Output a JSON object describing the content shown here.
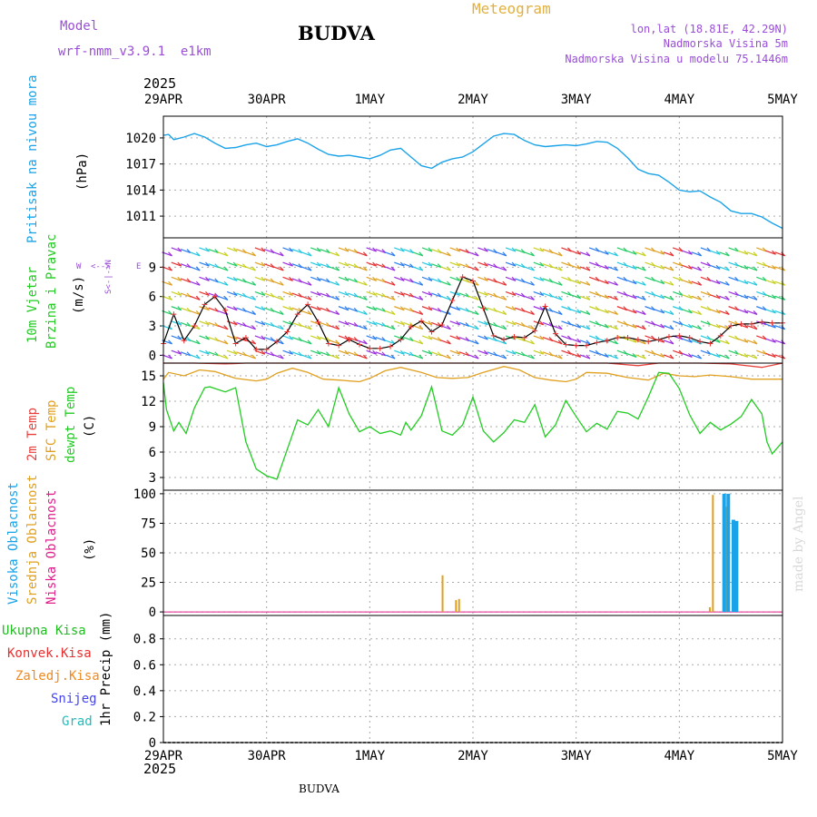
{
  "header": {
    "model_label": "Model",
    "model_name": "wrf-nmm_v3.9.1  e1km",
    "station": "BUDVA",
    "title": "Meteogram",
    "lonlat": "lon,lat (18.81E, 42.29N)",
    "elevation": "Nadmorska Visina 5m",
    "model_elevation": "Nadmorska Visina u modelu 75.1446m",
    "year_top": "2025",
    "year_bottom": "2025",
    "footer_station": "BUDVA",
    "credit": "made by Angel"
  },
  "time_axis": {
    "labels": [
      "29APR",
      "30APR",
      "1MAY",
      "2MAY",
      "3MAY",
      "4MAY",
      "5MAY"
    ],
    "range_days": [
      0,
      6
    ]
  },
  "panels": {
    "pressure": {
      "label": "Pritisak na nivou mora",
      "unit": "(hPa)"
    },
    "wind": {
      "label1": "10m Vjetar",
      "label2": "Brzina i Pravac",
      "unit": "(m/s)",
      "compass": "N S W E"
    },
    "temp": {
      "label1": "2m Temp",
      "label2": "SFC Temp",
      "label3": "dewpt Temp",
      "unit": "(C)"
    },
    "cloud": {
      "label1": "Visoka Oblacnost",
      "label2": "Srednja Oblacnost",
      "label3": "Niska Oblacnost",
      "unit": "(%)"
    },
    "precip": {
      "label1": "Ukupna Kisa",
      "label2": "Konvek.Kisa",
      "label3": "Zaledj.Kisa",
      "label4": "Snijeg",
      "label5": "Grad",
      "unit": "1hr Precip (mm)"
    }
  },
  "colors": {
    "pressure": "#1aa3e8",
    "temp2m": "#e8403c",
    "sfc": "#e0a020",
    "dewpt": "#22cc22",
    "wind_speed": "#000000",
    "wind_marker": "#e83030",
    "cloud_high": "#1aa3e8",
    "cloud_mid": "#e0a020",
    "cloud_low": "#e0208a",
    "rain_total": "#22bb22",
    "rain_conv": "#e83030",
    "rain_frozen": "#f08a20",
    "snow": "#4444ee",
    "hail": "#22bbbb",
    "model_text": "#9a4ed8",
    "title_text": "#e0b040"
  },
  "chart_data": [
    {
      "type": "line",
      "name": "pressure",
      "ylabel": "Pritisak na nivou mora (hPa)",
      "ylim": [
        1008.5,
        1022.5
      ],
      "yticks": [
        1011,
        1014,
        1017,
        1020
      ],
      "xlim": [
        0,
        6
      ],
      "x": [
        0,
        0.05,
        0.1,
        0.2,
        0.3,
        0.4,
        0.5,
        0.6,
        0.7,
        0.8,
        0.9,
        1.0,
        1.1,
        1.2,
        1.3,
        1.4,
        1.5,
        1.6,
        1.7,
        1.8,
        1.9,
        2.0,
        2.1,
        2.2,
        2.3,
        2.4,
        2.5,
        2.6,
        2.7,
        2.8,
        2.9,
        3.0,
        3.1,
        3.2,
        3.3,
        3.4,
        3.5,
        3.6,
        3.7,
        3.8,
        3.9,
        4.0,
        4.1,
        4.2,
        4.3,
        4.4,
        4.5,
        4.6,
        4.7,
        4.8,
        4.9,
        5.0,
        5.1,
        5.2,
        5.3,
        5.4,
        5.5,
        5.6,
        5.7,
        5.8,
        5.9,
        6.0
      ],
      "y": [
        1020.3,
        1020.4,
        1019.8,
        1020.1,
        1020.5,
        1020.1,
        1019.4,
        1018.8,
        1018.9,
        1019.2,
        1019.4,
        1019.0,
        1019.2,
        1019.6,
        1019.9,
        1019.4,
        1018.7,
        1018.1,
        1017.9,
        1018.0,
        1017.8,
        1017.6,
        1018.0,
        1018.6,
        1018.8,
        1017.8,
        1016.8,
        1016.5,
        1017.2,
        1017.6,
        1017.8,
        1018.4,
        1019.3,
        1020.2,
        1020.5,
        1020.4,
        1019.7,
        1019.2,
        1019.0,
        1019.1,
        1019.2,
        1019.1,
        1019.3,
        1019.6,
        1019.5,
        1018.8,
        1017.7,
        1016.4,
        1015.9,
        1015.7,
        1014.9,
        1014.0,
        1013.8,
        1013.9,
        1013.2,
        1012.6,
        1011.6,
        1011.3,
        1011.3,
        1010.9,
        1010.2,
        1009.6
      ]
    },
    {
      "type": "line",
      "name": "wind",
      "ylabel": "10m Vjetar Brzina i Pravac (m/s)",
      "ylim": [
        -0.8,
        12
      ],
      "yticks": [
        0,
        3,
        6,
        9
      ],
      "xlim": [
        0,
        6
      ],
      "x": [
        0,
        0.1,
        0.2,
        0.3,
        0.4,
        0.5,
        0.6,
        0.7,
        0.8,
        0.9,
        1.0,
        1.1,
        1.2,
        1.3,
        1.4,
        1.5,
        1.6,
        1.7,
        1.8,
        1.9,
        2.0,
        2.1,
        2.2,
        2.3,
        2.4,
        2.5,
        2.6,
        2.7,
        2.8,
        2.9,
        3.0,
        3.1,
        3.2,
        3.3,
        3.4,
        3.5,
        3.6,
        3.7,
        3.8,
        3.9,
        4.0,
        4.1,
        4.2,
        4.3,
        4.4,
        4.5,
        4.6,
        4.7,
        4.8,
        4.9,
        5.0,
        5.1,
        5.2,
        5.3,
        5.4,
        5.5,
        5.6,
        5.7,
        5.8,
        5.9,
        6.0
      ],
      "y": [
        1.2,
        4.2,
        1.5,
        3.0,
        5.2,
        6.0,
        4.6,
        1.2,
        1.8,
        0.6,
        0.6,
        1.4,
        2.4,
        4.2,
        5.2,
        3.4,
        1.2,
        1.0,
        1.6,
        1.1,
        0.7,
        0.7,
        0.9,
        1.6,
        2.9,
        3.5,
        2.4,
        3.1,
        5.6,
        8.0,
        7.6,
        4.8,
        2.0,
        1.6,
        1.9,
        1.8,
        2.5,
        5.0,
        2.2,
        1.1,
        1.0,
        1.0,
        1.3,
        1.5,
        1.8,
        1.8,
        1.6,
        1.4,
        1.6,
        1.9,
        2.0,
        1.8,
        1.4,
        1.2,
        2.0,
        3.0,
        3.2,
        3.2,
        3.4,
        3.3,
        3.3
      ]
    },
    {
      "type": "line",
      "ylabel": "2m Temp / SFC Temp / dewpt Temp (C)",
      "ylim": [
        1.5,
        16.5
      ],
      "yticks": [
        3,
        6,
        9,
        12,
        15
      ],
      "xlim": [
        0,
        6
      ],
      "series": [
        {
          "name": "2m Temp",
          "x": [
            0,
            0.3,
            0.6,
            0.8,
            1.0,
            1.3,
            1.5,
            1.7,
            2.0,
            2.3,
            2.6,
            2.9,
            3.2,
            3.5,
            3.8,
            4.1,
            4.3,
            4.6,
            4.8,
            5.0,
            5.2,
            5.5,
            5.8,
            6.0
          ],
          "y": [
            16.6,
            16.9,
            16.4,
            16.6,
            17.0,
            16.8,
            17.1,
            16.6,
            16.7,
            16.9,
            16.6,
            16.8,
            17.2,
            16.6,
            16.9,
            16.7,
            16.8,
            16.2,
            16.5,
            16.8,
            16.7,
            16.4,
            16.0,
            16.7
          ]
        },
        {
          "name": "SFC Temp",
          "x": [
            0,
            0.05,
            0.2,
            0.35,
            0.5,
            0.7,
            0.9,
            1.0,
            1.1,
            1.25,
            1.4,
            1.55,
            1.7,
            1.9,
            2.0,
            2.15,
            2.3,
            2.5,
            2.65,
            2.8,
            2.95,
            3.1,
            3.3,
            3.45,
            3.6,
            3.75,
            3.9,
            4.0,
            4.1,
            4.3,
            4.5,
            4.7,
            4.85,
            5.0,
            5.15,
            5.3,
            5.5,
            5.7,
            5.85,
            6.0
          ],
          "y": [
            14.6,
            15.4,
            15.0,
            15.7,
            15.5,
            14.7,
            14.4,
            14.6,
            15.3,
            15.9,
            15.4,
            14.6,
            14.5,
            14.3,
            14.7,
            15.6,
            16.0,
            15.4,
            14.8,
            14.7,
            14.8,
            15.4,
            16.1,
            15.7,
            14.8,
            14.5,
            14.3,
            14.6,
            15.4,
            15.3,
            14.8,
            14.5,
            15.3,
            15.0,
            14.9,
            15.1,
            14.9,
            14.6,
            14.6,
            14.6
          ]
        },
        {
          "name": "dewpt Temp",
          "x": [
            0,
            0.03,
            0.1,
            0.15,
            0.22,
            0.3,
            0.4,
            0.45,
            0.5,
            0.6,
            0.7,
            0.8,
            0.9,
            1.0,
            1.1,
            1.2,
            1.3,
            1.4,
            1.5,
            1.6,
            1.7,
            1.8,
            1.9,
            2.0,
            2.1,
            2.2,
            2.3,
            2.35,
            2.4,
            2.5,
            2.6,
            2.7,
            2.8,
            2.9,
            3.0,
            3.1,
            3.2,
            3.3,
            3.4,
            3.5,
            3.6,
            3.7,
            3.8,
            3.9,
            4.0,
            4.1,
            4.2,
            4.3,
            4.4,
            4.5,
            4.6,
            4.7,
            4.8,
            4.9,
            5.0,
            5.1,
            5.2,
            5.3,
            5.4,
            5.5,
            5.6,
            5.7,
            5.8,
            5.85,
            5.9,
            6.0
          ],
          "y": [
            14.2,
            11.0,
            8.5,
            9.5,
            8.2,
            11.2,
            13.6,
            13.7,
            13.5,
            13.1,
            13.6,
            7.2,
            4.0,
            3.2,
            2.8,
            6.3,
            9.8,
            9.2,
            11.0,
            9.0,
            13.6,
            10.5,
            8.4,
            9.0,
            8.2,
            8.5,
            8.0,
            9.5,
            8.6,
            10.3,
            13.7,
            8.5,
            8.0,
            9.2,
            12.5,
            8.5,
            7.2,
            8.3,
            9.8,
            9.5,
            11.6,
            7.8,
            9.2,
            12.1,
            10.2,
            8.4,
            9.4,
            8.7,
            10.8,
            10.6,
            9.9,
            12.5,
            15.4,
            15.3,
            13.5,
            10.4,
            8.2,
            9.5,
            8.6,
            9.3,
            10.2,
            12.2,
            10.5,
            7.2,
            5.8,
            7.2
          ]
        }
      ]
    },
    {
      "type": "bar",
      "ylabel": "Visoka / Srednja / Niska Oblacnost (%)",
      "ylim": [
        -3,
        103
      ],
      "yticks": [
        0,
        25,
        50,
        75,
        100
      ],
      "xlim": [
        0,
        6
      ],
      "series": [
        {
          "name": "Srednja Oblacnost",
          "x": [
            2.71,
            2.84,
            2.87,
            5.3,
            5.33,
            5.46
          ],
          "y": [
            31,
            10,
            11,
            4,
            99,
            89
          ]
        },
        {
          "name": "Visoka Oblacnost",
          "x": [
            5.43,
            5.47,
            5.52,
            5.55
          ],
          "y": [
            100,
            100,
            78,
            77
          ]
        }
      ]
    },
    {
      "type": "bar",
      "ylabel": "1hr Precip (mm)",
      "ylim": [
        0,
        0.98
      ],
      "yticks": [
        0,
        0.2,
        0.4,
        0.6,
        0.8
      ],
      "xlim": [
        0,
        6
      ],
      "series": [
        {
          "name": "Ukupna Kisa",
          "x": [],
          "y": []
        }
      ]
    }
  ]
}
